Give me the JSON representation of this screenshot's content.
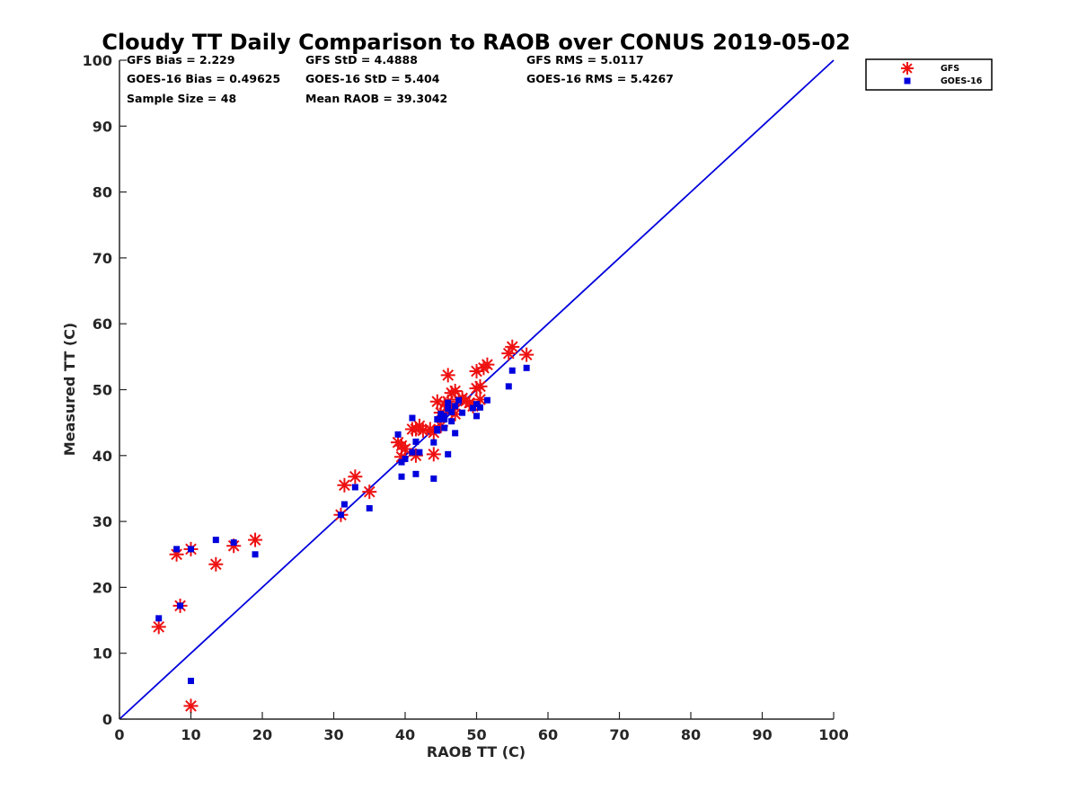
{
  "chart_data": {
    "type": "scatter",
    "title": "Cloudy TT Daily Comparison to RAOB over CONUS 2019-05-02",
    "xlabel": "RAOB TT (C)",
    "ylabel": "Measured TT (C)",
    "xlim": [
      0,
      100
    ],
    "ylim": [
      0,
      100
    ],
    "xticks": [
      "0",
      "10",
      "20",
      "30",
      "40",
      "50",
      "60",
      "70",
      "80",
      "90",
      "100"
    ],
    "yticks": [
      "0",
      "10",
      "20",
      "30",
      "40",
      "50",
      "60",
      "70",
      "80",
      "90",
      "100"
    ],
    "grid": false,
    "legend_position": "top-right-outside",
    "reference_line": {
      "x": [
        0,
        100
      ],
      "y": [
        0,
        100
      ],
      "color": "#0000dd"
    },
    "stats": [
      [
        "GFS Bias = 2.229",
        "GFS StD = 4.4888",
        "GFS RMS = 5.0117"
      ],
      [
        "GOES-16 Bias = 0.49625",
        "GOES-16 StD = 5.404",
        "GOES-16 RMS = 5.4267"
      ],
      [
        "Sample Size = 48",
        "Mean RAOB = 39.3042",
        ""
      ]
    ],
    "series": [
      {
        "name": "GFS",
        "marker": "asterisk",
        "color": "#ee1111",
        "x": [
          5.5,
          8,
          8.5,
          10,
          10,
          13.5,
          16,
          19,
          31,
          31.5,
          33,
          35,
          39,
          39.5,
          39.5,
          40,
          41,
          41.5,
          42,
          42.5,
          43.5,
          44,
          44.5,
          45,
          45,
          45.5,
          46,
          46,
          46.5,
          46.5,
          47,
          47,
          47.5,
          48,
          48.5,
          49,
          49.5,
          50,
          50,
          50.5,
          50.5,
          51,
          51.5,
          54.5,
          55,
          57,
          41.5,
          44
        ],
        "y": [
          14,
          25,
          17.2,
          25.8,
          2,
          23.5,
          26.3,
          27.2,
          31,
          35.5,
          36.8,
          34.5,
          42,
          39.8,
          41.5,
          41,
          44,
          40,
          44.5,
          43.8,
          44,
          40.2,
          48.2,
          46.5,
          44.5,
          47.8,
          52.2,
          48.2,
          49.5,
          47,
          49.8,
          46.3,
          48.5,
          48.7,
          48.3,
          48,
          47.5,
          50.2,
          52.8,
          48.5,
          50.5,
          53.3,
          53.8,
          55.5,
          56.5,
          55.3,
          44,
          43.5
        ]
      },
      {
        "name": "GOES-16",
        "marker": "square",
        "color": "#0000dd",
        "x": [
          5.5,
          8,
          8.5,
          10,
          10,
          13.5,
          16,
          19,
          31,
          31.5,
          33,
          35,
          39,
          39.5,
          39.5,
          40,
          41,
          41.5,
          41.5,
          42,
          44,
          44,
          44.5,
          44.5,
          45,
          45,
          45.5,
          45.5,
          46,
          46,
          46.5,
          46.5,
          47,
          47,
          47.5,
          48,
          49.5,
          50,
          50,
          50.5,
          51.5,
          54.5,
          55,
          57,
          41,
          45.5,
          44.5,
          46
        ],
        "y": [
          15.3,
          25.8,
          17.2,
          25.8,
          5.8,
          27.2,
          26.8,
          25,
          31,
          32.6,
          35.2,
          32,
          43.2,
          36.8,
          39,
          39.5,
          45.7,
          42.1,
          37.2,
          40.5,
          42,
          36.5,
          45.5,
          44,
          45.5,
          46.3,
          44.2,
          45.5,
          48,
          40.2,
          45.2,
          46.6,
          43.4,
          47.5,
          48.4,
          46.5,
          47.2,
          46,
          47.8,
          47.3,
          48.4,
          50.5,
          52.9,
          53.3,
          40.5,
          46,
          43.8,
          47.1
        ]
      }
    ]
  }
}
